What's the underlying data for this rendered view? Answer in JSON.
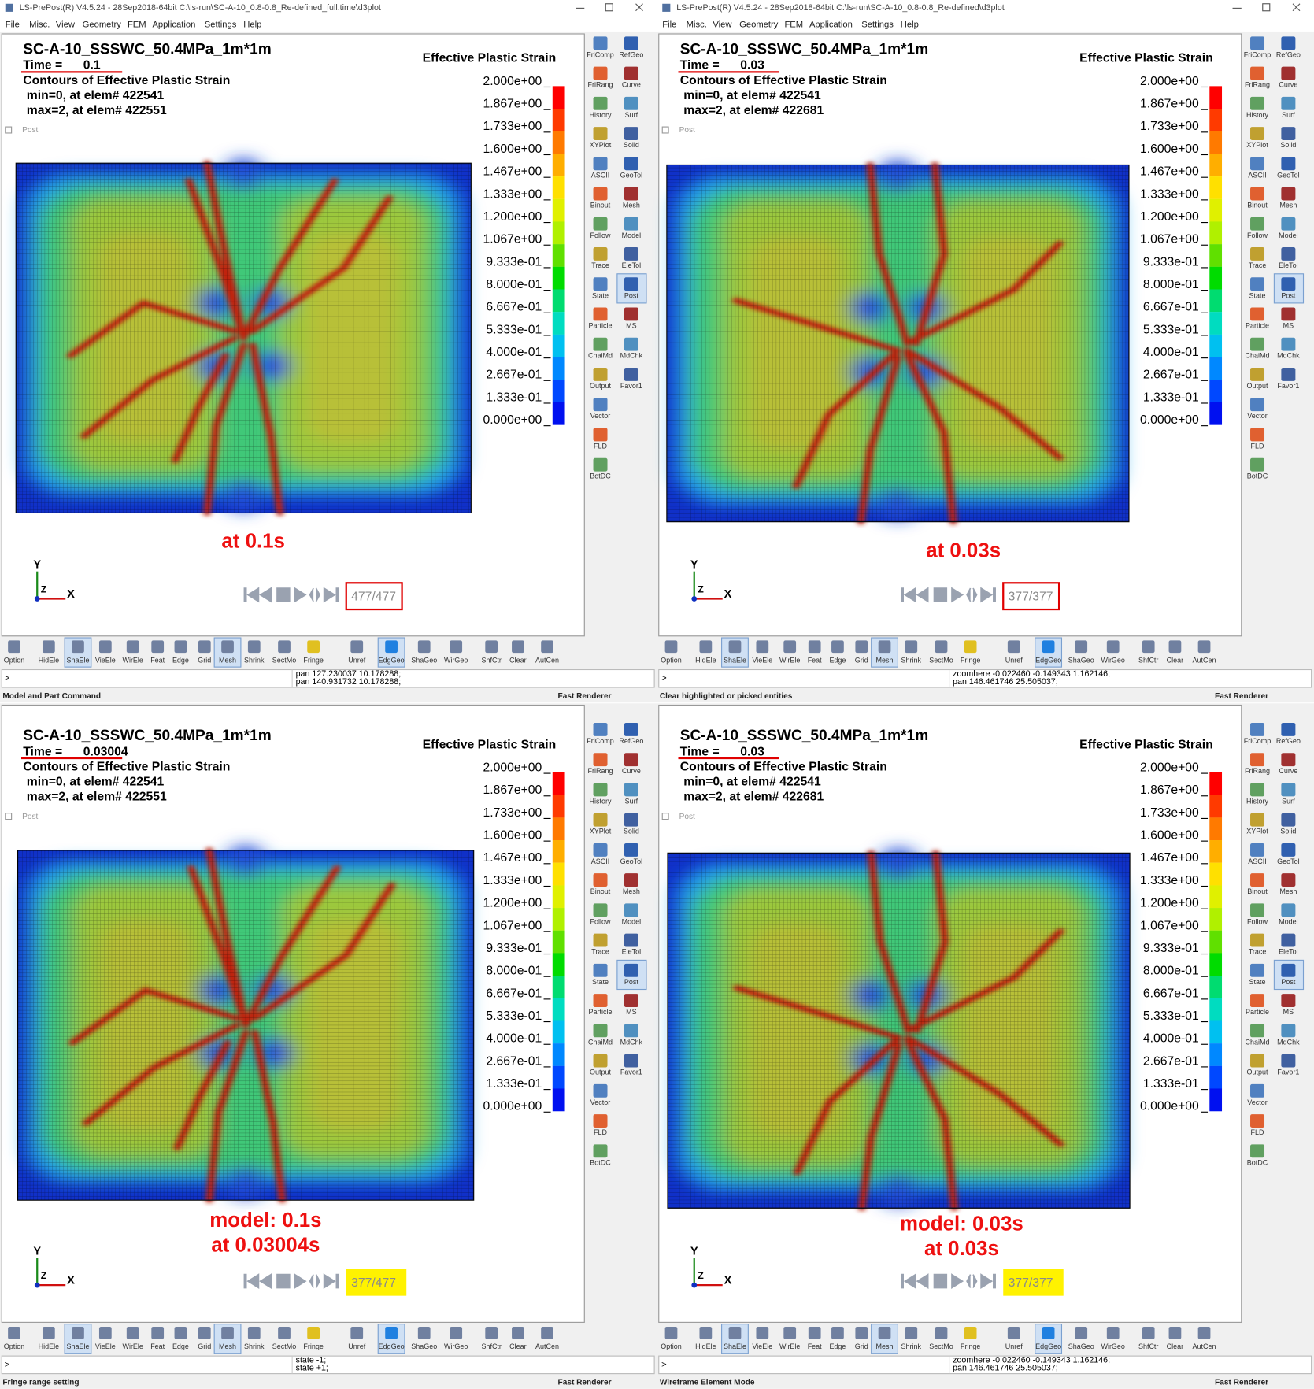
{
  "menu": [
    "File",
    "Misc.",
    "View",
    "Geometry",
    "FEM",
    "Application",
    "Settings",
    "Help"
  ],
  "side_toolbar": {
    "left": [
      "FriComp",
      "FriRang",
      "History",
      "XYPlot",
      "ASCII",
      "Binout",
      "Follow",
      "Trace",
      "State",
      "Particle",
      "ChaiMd",
      "Output",
      "Vector",
      "FLD",
      "BotDC"
    ],
    "right": [
      "RefGeo",
      "Curve",
      "Surf",
      "Solid",
      "GeoTol",
      "Mesh",
      "Model",
      "EleTol",
      "Post",
      "MS",
      "MdChk",
      "Favor1"
    ]
  },
  "bottom_toolbar": [
    "Option",
    "HidEle",
    "ShaEle",
    "VieEle",
    "WirEle",
    "Feat",
    "Edge",
    "Grid",
    "Mesh",
    "Shrink",
    "SectMo",
    "Fringe",
    "Unref",
    "EdgGeo",
    "ShaGeo",
    "WirGeo",
    "ShfCtr",
    "Clear",
    "AutCen"
  ],
  "legend": {
    "title": "Effective Plastic Strain",
    "labels": [
      "2.000e+00",
      "1.867e+00",
      "1.733e+00",
      "1.600e+00",
      "1.467e+00",
      "1.333e+00",
      "1.200e+00",
      "1.067e+00",
      "9.333e-01",
      "8.000e-01",
      "6.667e-01",
      "5.333e-01",
      "4.000e-01",
      "2.667e-01",
      "1.333e-01",
      "0.000e+00"
    ]
  },
  "post_label": "Post",
  "axes": [
    "Y",
    "Z",
    "X"
  ],
  "renderer": "Fast Renderer",
  "panels": [
    {
      "window_title": "LS-PrePost(R) V4.5.24 - 28Sep2018-64bit C:\\ls-run\\SC-A-10_0.8-0.8_Re-defined_full.time\\d3plot",
      "model_title": "SC-A-10_SSSWC_50.4MPa_1m*1m",
      "time_label": "Time =",
      "time_value": "0.1",
      "contour_title": "Contours of Effective Plastic Strain",
      "min_line": "min=0, at elem# 422541",
      "max_line": "max=2, at elem# 422551",
      "annotation": [
        "at 0.1s"
      ],
      "frame_counter": "477/477",
      "counter_style": "red-box",
      "command_lines": [
        "pan 127.230037 10.178288;",
        "pan 140.931732 10.178288;"
      ],
      "status": "Model and Part Command"
    },
    {
      "window_title": "LS-PrePost(R) V4.5.24 - 28Sep2018-64bit C:\\ls-run\\SC-A-10_0.8-0.8_Re-defined\\d3plot",
      "model_title": "SC-A-10_SSSWC_50.4MPa_1m*1m",
      "time_label": "Time =",
      "time_value": "0.03",
      "contour_title": "Contours of Effective Plastic Strain",
      "min_line": "min=0, at elem# 422541",
      "max_line": "max=2, at elem# 422681",
      "annotation": [
        "at 0.03s"
      ],
      "frame_counter": "377/377",
      "counter_style": "red-box",
      "command_lines": [
        "zoomhere -0.022460 -0.149343 1.162146;",
        "pan 146.461746 25.505037;"
      ],
      "status": "Clear highlighted or picked entities"
    },
    {
      "model_title": "SC-A-10_SSSWC_50.4MPa_1m*1m",
      "time_label": "Time =",
      "time_value": "0.03004",
      "contour_title": "Contours of Effective Plastic Strain",
      "min_line": "min=0, at elem# 422541",
      "max_line": "max=2, at elem# 422551",
      "annotation": [
        "model: 0.1s",
        "at 0.03004s"
      ],
      "frame_counter": "377/477",
      "counter_style": "yellow",
      "command_lines": [
        "state -1;",
        "state +1;"
      ],
      "status": "Fringe range setting"
    },
    {
      "model_title": "SC-A-10_SSSWC_50.4MPa_1m*1m",
      "time_label": "Time =",
      "time_value": "0.03",
      "contour_title": "Contours of Effective Plastic Strain",
      "min_line": "min=0, at elem# 422541",
      "max_line": "max=2, at elem# 422681",
      "annotation": [
        "model: 0.03s",
        "at 0.03s"
      ],
      "frame_counter": "377/377",
      "counter_style": "yellow",
      "command_lines": [
        "zoomhere -0.022460 -0.149343 1.162146;",
        "pan 146.461746 25.505037;"
      ],
      "status": "Wireframe Element Mode"
    }
  ]
}
